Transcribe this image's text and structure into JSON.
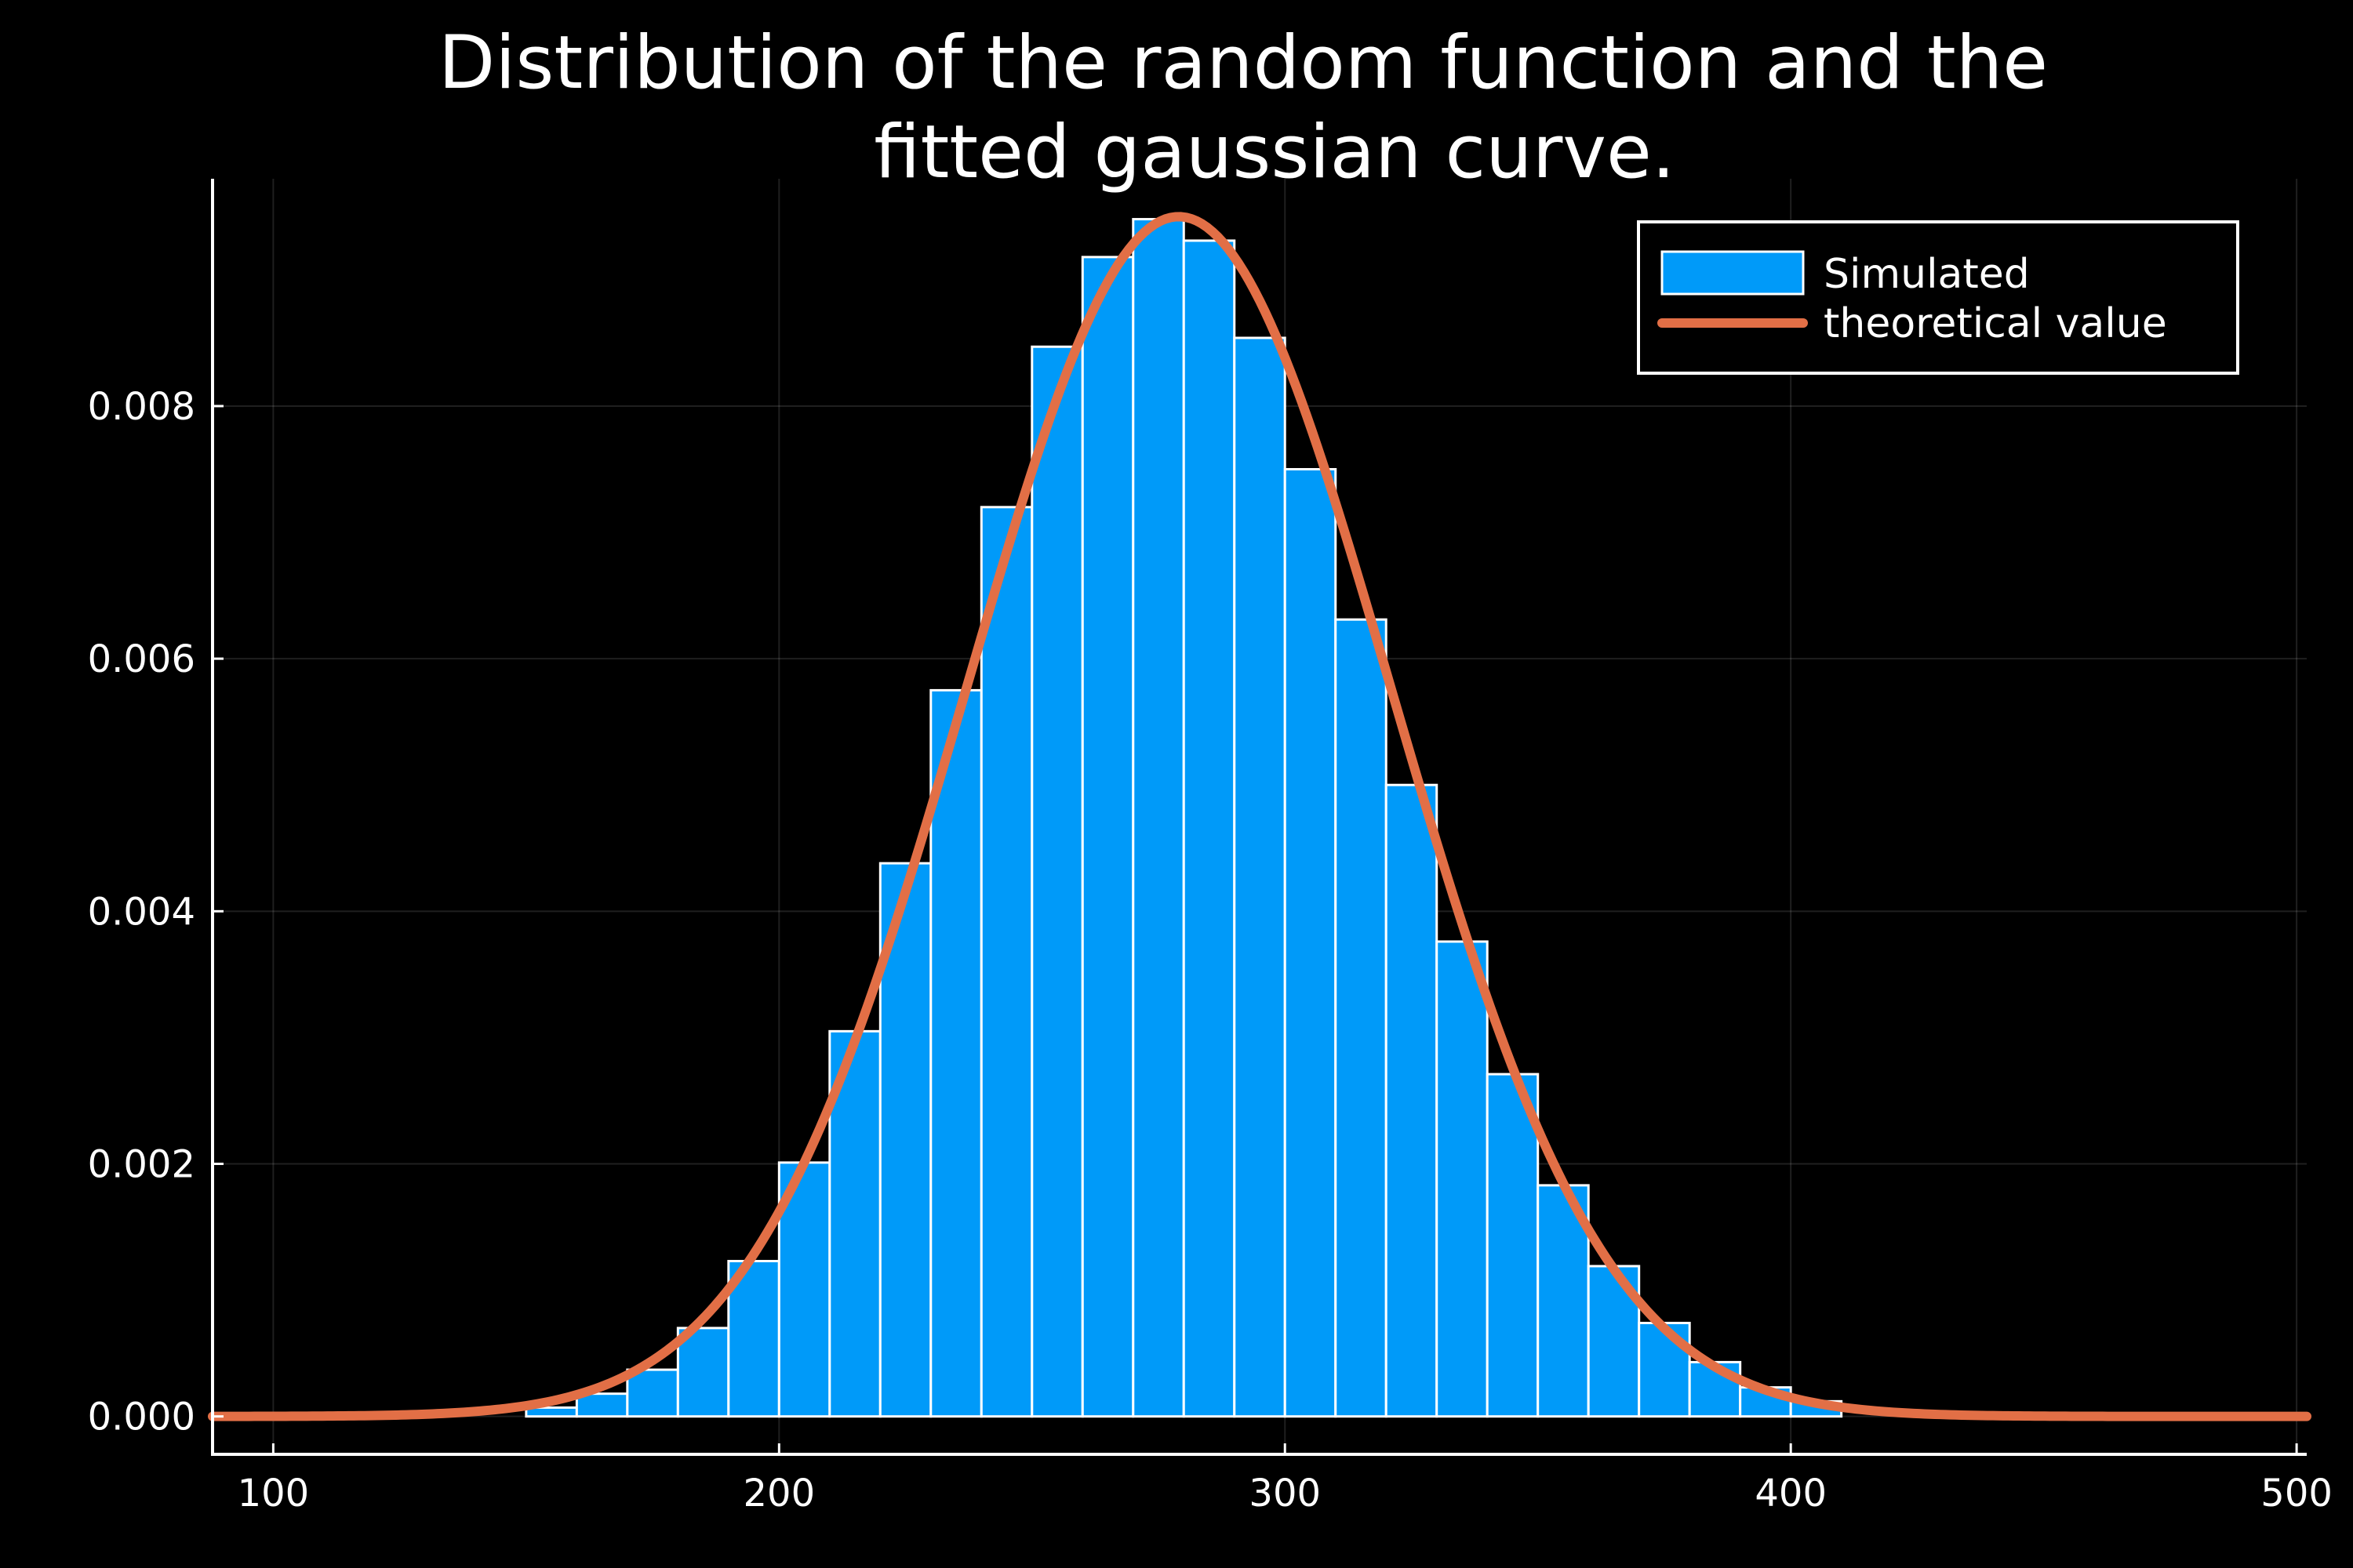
{
  "chart_data": {
    "type": "bar",
    "title_lines": [
      "Distribution of the random function and the",
      "fitted gaussian curve."
    ],
    "xlabel": "",
    "ylabel": "",
    "xlim": [
      88,
      502
    ],
    "ylim": [
      -0.0003,
      0.0098
    ],
    "x_ticks": [
      100,
      200,
      300,
      400,
      500
    ],
    "x_tick_labels": [
      "100",
      "200",
      "300",
      "400",
      "500"
    ],
    "y_ticks": [
      0,
      0.002,
      0.004,
      0.006,
      0.008
    ],
    "y_tick_labels": [
      "0.000",
      "0.002",
      "0.004",
      "0.006",
      "0.008"
    ],
    "grid": true,
    "legend_position": "top-right",
    "bin_width": 10,
    "bin_starts": [
      150,
      160,
      170,
      180,
      190,
      200,
      210,
      220,
      230,
      240,
      250,
      260,
      270,
      280,
      290,
      300,
      310,
      320,
      330,
      340,
      350,
      360,
      370,
      380,
      390,
      400
    ],
    "series": [
      {
        "name": "Simulated",
        "kind": "histogram",
        "color": "#009AF9",
        "values": [
          7e-05,
          0.00018,
          0.00037,
          0.0007,
          0.00123,
          0.00201,
          0.00305,
          0.00438,
          0.00575,
          0.0072,
          0.00847,
          0.00918,
          0.00948,
          0.00931,
          0.00854,
          0.0075,
          0.00631,
          0.005,
          0.00376,
          0.00271,
          0.00183,
          0.00119,
          0.00074,
          0.00043,
          0.00023,
          0.00012
        ]
      },
      {
        "name": "theoretical value",
        "kind": "line",
        "color": "#E26F46",
        "x_range": [
          88,
          502
        ],
        "mean": 279,
        "std": 42,
        "peak": 0.0095
      }
    ]
  }
}
